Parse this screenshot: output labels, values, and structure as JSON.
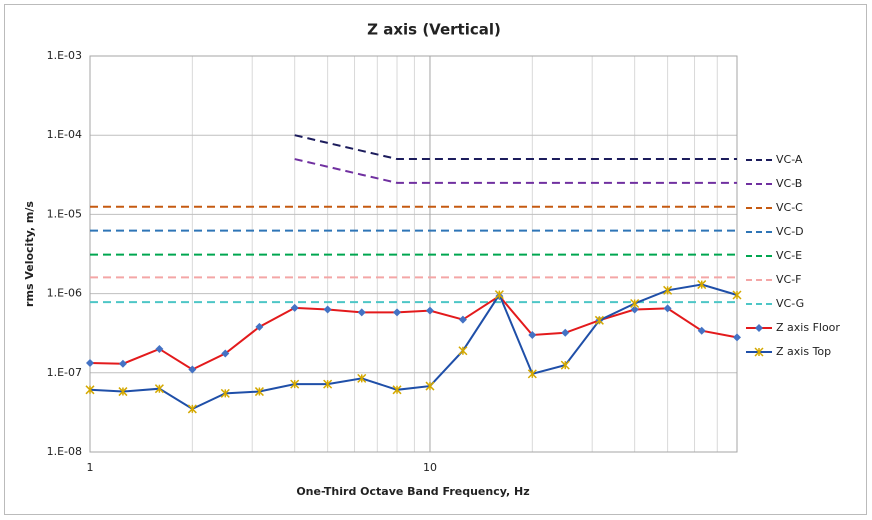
{
  "chart_data": {
    "type": "line",
    "title": "Z axis (Vertical)",
    "x_label": "One-Third Octave Band Frequency, Hz",
    "y_label": "rms Velocity, m/s",
    "x": [
      1,
      1.25,
      1.6,
      2,
      2.5,
      3.15,
      4,
      5,
      6.3,
      8,
      10,
      12.5,
      16,
      20,
      25,
      31.5,
      40,
      50,
      63,
      80
    ],
    "xlim": [
      1,
      80
    ],
    "ylim": [
      1e-08,
      0.001
    ],
    "xlog": true,
    "ylog": true,
    "grid": true,
    "minor_grid": true,
    "legend": "right",
    "xticks": [
      1,
      10
    ],
    "yticks": [
      {
        "value": 1e-08,
        "label": "1.E-08"
      },
      {
        "value": 1e-07,
        "label": "1.E-07"
      },
      {
        "value": 1e-06,
        "label": "1.E-06"
      },
      {
        "value": 1e-05,
        "label": "1.E-05"
      },
      {
        "value": 0.0001,
        "label": "1.E-04"
      },
      {
        "value": 0.001,
        "label": "1.E-03"
      }
    ],
    "series": [
      {
        "name": "VC-A",
        "color": "#1c1c5c",
        "dashed": true,
        "values": [
          null,
          null,
          null,
          null,
          null,
          null,
          0.0001,
          8e-05,
          6.35e-05,
          5e-05,
          5e-05,
          5e-05,
          5e-05,
          5e-05,
          5e-05,
          5e-05,
          5e-05,
          5e-05,
          5e-05,
          5e-05
        ]
      },
      {
        "name": "VC-B",
        "color": "#7030a0",
        "dashed": true,
        "values": [
          null,
          null,
          null,
          null,
          null,
          null,
          5e-05,
          4e-05,
          3.17e-05,
          2.5e-05,
          2.5e-05,
          2.5e-05,
          2.5e-05,
          2.5e-05,
          2.5e-05,
          2.5e-05,
          2.5e-05,
          2.5e-05,
          2.5e-05,
          2.5e-05
        ]
      },
      {
        "name": "VC-C",
        "color": "#c55a11",
        "dashed": true,
        "values": [
          1.25e-05,
          1.25e-05,
          1.25e-05,
          1.25e-05,
          1.25e-05,
          1.25e-05,
          1.25e-05,
          1.25e-05,
          1.25e-05,
          1.25e-05,
          1.25e-05,
          1.25e-05,
          1.25e-05,
          1.25e-05,
          1.25e-05,
          1.25e-05,
          1.25e-05,
          1.25e-05,
          1.25e-05,
          1.25e-05
        ]
      },
      {
        "name": "VC-D",
        "color": "#2e75b6",
        "dashed": true,
        "values": [
          6.25e-06,
          6.25e-06,
          6.25e-06,
          6.25e-06,
          6.25e-06,
          6.25e-06,
          6.25e-06,
          6.25e-06,
          6.25e-06,
          6.25e-06,
          6.25e-06,
          6.25e-06,
          6.25e-06,
          6.25e-06,
          6.25e-06,
          6.25e-06,
          6.25e-06,
          6.25e-06,
          6.25e-06,
          6.25e-06
        ]
      },
      {
        "name": "VC-E",
        "color": "#00a650",
        "dashed": true,
        "values": [
          3.1e-06,
          3.1e-06,
          3.1e-06,
          3.1e-06,
          3.1e-06,
          3.1e-06,
          3.1e-06,
          3.1e-06,
          3.1e-06,
          3.1e-06,
          3.1e-06,
          3.1e-06,
          3.1e-06,
          3.1e-06,
          3.1e-06,
          3.1e-06,
          3.1e-06,
          3.1e-06,
          3.1e-06,
          3.1e-06
        ]
      },
      {
        "name": "VC-F",
        "color": "#f4a6a6",
        "dashed": true,
        "values": [
          1.6e-06,
          1.6e-06,
          1.6e-06,
          1.6e-06,
          1.6e-06,
          1.6e-06,
          1.6e-06,
          1.6e-06,
          1.6e-06,
          1.6e-06,
          1.6e-06,
          1.6e-06,
          1.6e-06,
          1.6e-06,
          1.6e-06,
          1.6e-06,
          1.6e-06,
          1.6e-06,
          1.6e-06,
          1.6e-06
        ]
      },
      {
        "name": "VC-G",
        "color": "#4dc6c6",
        "dashed": true,
        "values": [
          7.8e-07,
          7.8e-07,
          7.8e-07,
          7.8e-07,
          7.8e-07,
          7.8e-07,
          7.8e-07,
          7.8e-07,
          7.8e-07,
          7.8e-07,
          7.8e-07,
          7.8e-07,
          7.8e-07,
          7.8e-07,
          7.8e-07,
          7.8e-07,
          7.8e-07,
          7.8e-07,
          7.8e-07,
          7.8e-07
        ]
      },
      {
        "name": "Z axis Floor",
        "color": "#e31a1c",
        "marker": "diamond",
        "marker_color": "#4472c4",
        "values": [
          1.33e-07,
          1.3e-07,
          2e-07,
          1.1e-07,
          1.75e-07,
          3.8e-07,
          6.6e-07,
          6.3e-07,
          5.8e-07,
          5.8e-07,
          6.1e-07,
          4.7e-07,
          9.3e-07,
          3e-07,
          3.2e-07,
          4.6e-07,
          6.3e-07,
          6.5e-07,
          3.4e-07,
          2.8e-07
        ]
      },
      {
        "name": "Z axis Top",
        "color": "#1f4fa8",
        "marker": "star",
        "marker_color": "#d4a800",
        "values": [
          6.1e-08,
          5.8e-08,
          6.3e-08,
          3.5e-08,
          5.5e-08,
          5.8e-08,
          7.2e-08,
          7.2e-08,
          8.5e-08,
          6.1e-08,
          6.8e-08,
          1.9e-07,
          9.7e-07,
          9.7e-08,
          1.25e-07,
          4.6e-07,
          7.5e-07,
          1.1e-06,
          1.3e-06,
          9.6e-07
        ]
      }
    ]
  }
}
